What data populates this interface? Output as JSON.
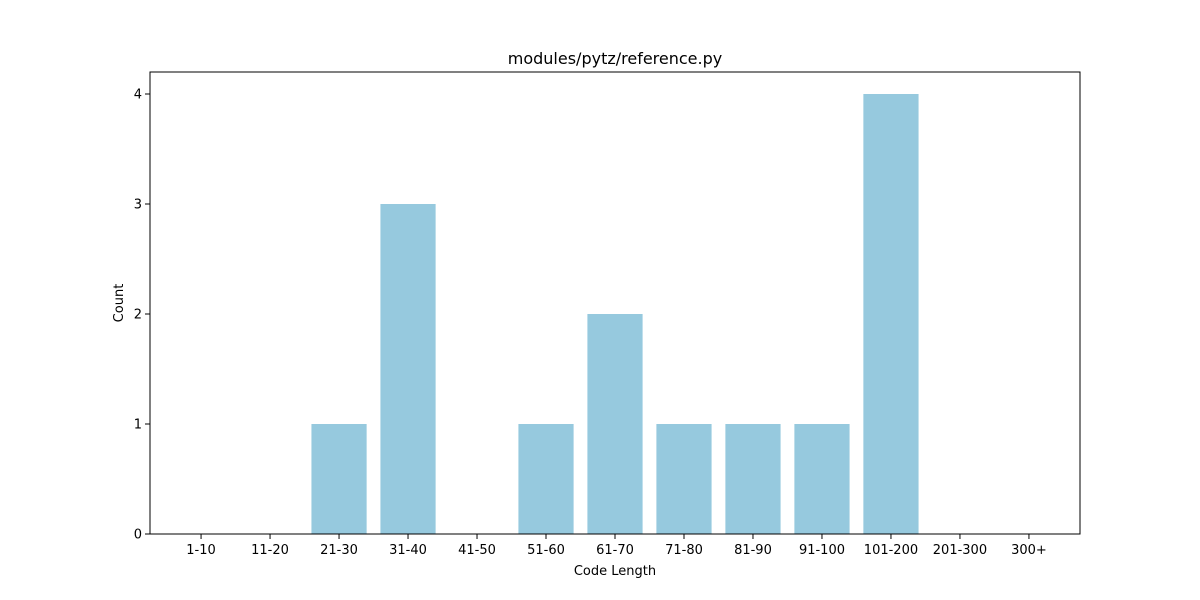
{
  "chart_data": {
    "type": "bar",
    "title": "modules/pytz/reference.py",
    "xlabel": "Code Length",
    "ylabel": "Count",
    "categories": [
      "1-10",
      "11-20",
      "21-30",
      "31-40",
      "41-50",
      "51-60",
      "61-70",
      "71-80",
      "81-90",
      "91-100",
      "101-200",
      "201-300",
      "300+"
    ],
    "values": [
      0,
      0,
      1,
      3,
      0,
      1,
      2,
      1,
      1,
      1,
      4,
      0,
      0
    ],
    "ylim": [
      0,
      4.2
    ],
    "yticks": [
      0,
      1,
      2,
      3,
      4
    ],
    "bar_color": "#96c9de",
    "grid": false,
    "legend": "none"
  }
}
